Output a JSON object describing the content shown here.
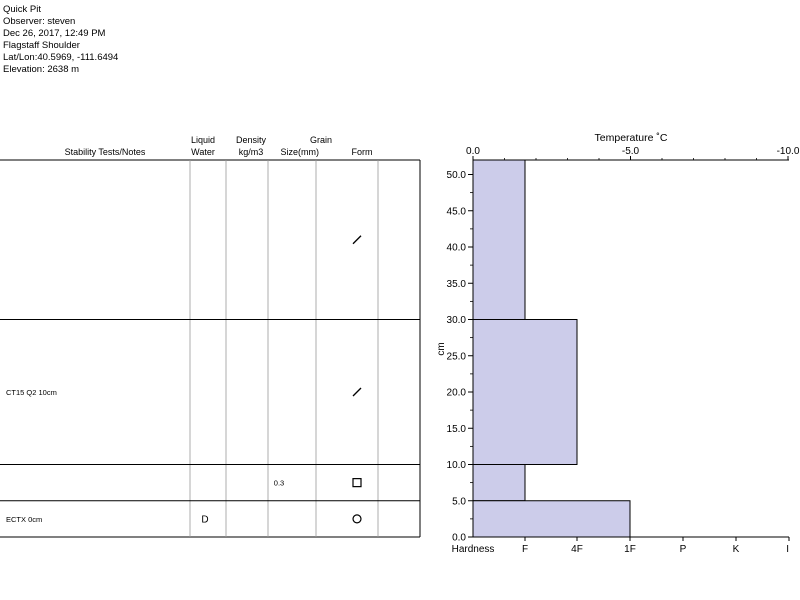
{
  "header": {
    "title": "Quick Pit",
    "observer": "Observer: steven",
    "datetime": "Dec 26, 2017, 12:49 PM",
    "location": "Flagstaff Shoulder",
    "latlon": "Lat/Lon:40.5969, -111.6494",
    "elevation": "Elevation: 2638 m"
  },
  "table": {
    "col_headers": [
      {
        "lines": [
          "Stability Tests/Notes"
        ]
      },
      {
        "lines": [
          "Liquid",
          "Water"
        ]
      },
      {
        "lines": [
          "Density",
          "kg/m3"
        ]
      },
      {
        "lines": [
          "Grain",
          "Size(mm)"
        ]
      },
      {
        "lines": [
          "Form"
        ]
      }
    ],
    "layers": [
      {
        "top_cm": 52,
        "bottom_cm": 30,
        "notes": "",
        "liquid_water": "",
        "density": "",
        "grain_size": "",
        "form": "slash-icon"
      },
      {
        "top_cm": 30,
        "bottom_cm": 10,
        "notes": "CT15 Q2 10cm",
        "liquid_water": "",
        "density": "",
        "grain_size": "",
        "form": "slash-icon"
      },
      {
        "top_cm": 10,
        "bottom_cm": 5,
        "notes": "",
        "liquid_water": "",
        "density": "",
        "grain_size": "0.3",
        "form": "square-icon"
      },
      {
        "top_cm": 5,
        "bottom_cm": 0,
        "notes": "ECTX 0cm",
        "liquid_water": "D",
        "density": "",
        "grain_size": "",
        "form": "circle-icon"
      }
    ]
  },
  "colors": {
    "fill": "#ccccea",
    "line": "#000000",
    "grid": "#999999"
  },
  "chart_data": {
    "type": "area",
    "title": "Temperature ˚C",
    "ylabel": "cm",
    "ylim": [
      0,
      52
    ],
    "yticks": [
      "0.0",
      "5.0",
      "10.0",
      "15.0",
      "20.0",
      "25.0",
      "30.0",
      "35.0",
      "40.0",
      "45.0",
      "50.0"
    ],
    "temperature_ticks": [
      {
        "value": 0.0,
        "label": "0.0"
      },
      {
        "value": -5.0,
        "label": "-5.0"
      },
      {
        "value": -10.0,
        "label": "-10.0"
      }
    ],
    "hardness_axis_title": "Hardness",
    "hardness_ticks": [
      "F",
      "4F",
      "1F",
      "P",
      "K",
      "I"
    ],
    "layers": [
      {
        "bottom_cm": 30,
        "top_cm": 52,
        "hardness": "F"
      },
      {
        "bottom_cm": 10,
        "top_cm": 30,
        "hardness": "4F"
      },
      {
        "bottom_cm": 5,
        "top_cm": 10,
        "hardness": "F"
      },
      {
        "bottom_cm": 0,
        "top_cm": 5,
        "hardness": "1F"
      }
    ]
  }
}
